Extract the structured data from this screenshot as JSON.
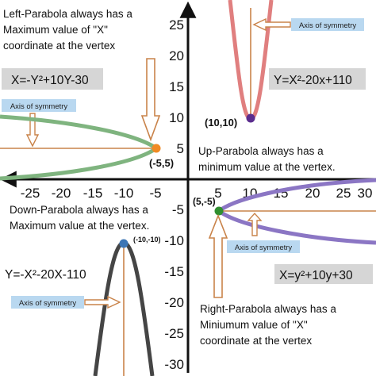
{
  "axis": {
    "y_tick_labels": [
      "25",
      "20",
      "15",
      "10",
      "5",
      "-5",
      "-10",
      "-15",
      "-20",
      "-25",
      "-30"
    ],
    "x_tick_labels": [
      "-25",
      "-20",
      "-15",
      "-10",
      "-5",
      "5",
      "10",
      "15",
      "20",
      "25",
      "30"
    ]
  },
  "left_parabola": {
    "note_lines": [
      "Left-Parabola always has a",
      "Maximum value of \"X\"",
      "coordinate at the vertex"
    ],
    "equation": "X=-Y²+10Y-30",
    "vertex_label": "(-5,5)",
    "axis_label": "Axis of symmetry",
    "color": "#7fb47f"
  },
  "up_parabola": {
    "note_lines": [
      "Up-Parabola always has a",
      "minimum value at the vertex."
    ],
    "equation": "Y=X²-20x+110",
    "vertex_label": "(10,10)",
    "axis_label": "Axis of symmetry",
    "color": "#e07f7f"
  },
  "down_parabola": {
    "note_lines": [
      "Down-Parabola always has a",
      "Maximum value at the  vertex."
    ],
    "equation": "Y=-X²-20X-110",
    "vertex_label": "(-10,-10)",
    "axis_label": "Axis of symmetry",
    "color": "#454545"
  },
  "right_parabola": {
    "note_lines": [
      "Right-Parabola always has a",
      "Miniumum value  of  \"X\"",
      "coordinate at the vertex"
    ],
    "equation": "X=y²+10y+30",
    "vertex_label": "(5,-5)",
    "axis_label": "Axis of symmetry",
    "color": "#8b76c4"
  },
  "colors": {
    "axis": "#111111",
    "symmetry_line": "#c9834a",
    "label_box": "#b9d8f0",
    "equation_box": "#d6d6d6",
    "up_vertex": "#5b2d8e",
    "left_vertex": "#f08a24",
    "down_vertex": "#3d76b5",
    "right_vertex": "#2f8f2f"
  }
}
